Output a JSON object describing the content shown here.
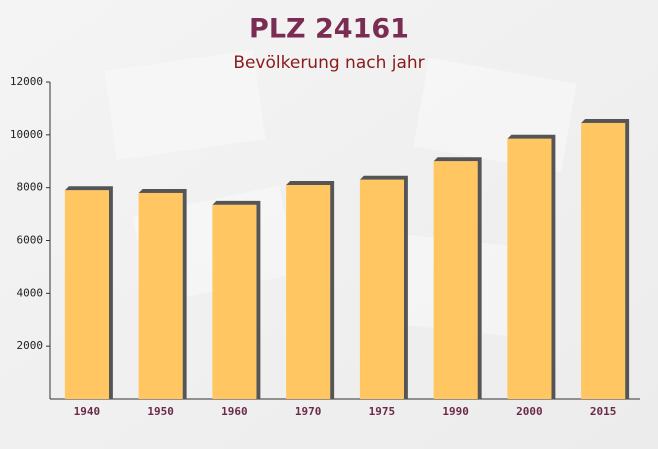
{
  "chart_data": {
    "type": "bar",
    "title": "PLZ 24161",
    "subtitle": "Bevölkerung nach jahr",
    "categories": [
      "1940",
      "1950",
      "1960",
      "1970",
      "1975",
      "1990",
      "2000",
      "2015"
    ],
    "values": [
      7900,
      7800,
      7350,
      8100,
      8300,
      9000,
      9850,
      10450
    ],
    "color": "#ffc661",
    "ylim": [
      0,
      12000
    ],
    "yticks": [
      2000,
      4000,
      6000,
      8000,
      10000,
      12000
    ]
  }
}
